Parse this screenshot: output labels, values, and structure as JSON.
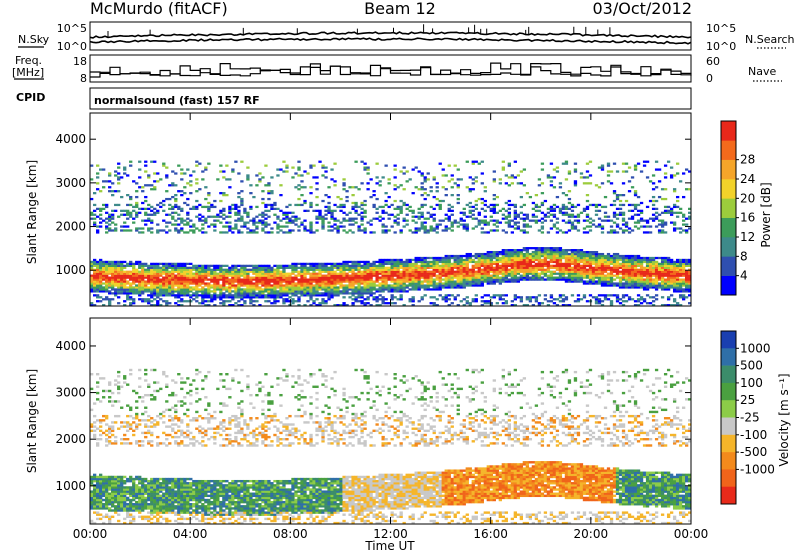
{
  "header": {
    "station": "McMurdo (fitACF)",
    "beam": "Beam 12",
    "date": "03/Oct/2012"
  },
  "strip_panels": {
    "nsky": {
      "left_label": "N.Sky",
      "right_label": "N.Search",
      "left_ticks": [
        "10^5",
        "10^0"
      ],
      "right_ticks": [
        "10^5",
        "10^0"
      ]
    },
    "freq": {
      "left_label_line1": "Freq.",
      "left_label_line2": "[MHz]",
      "right_label": "Nave",
      "left_ticks": [
        "18",
        "8"
      ],
      "right_ticks": [
        "60",
        "0"
      ]
    },
    "cpid": {
      "label": "CPID",
      "text": "normalsound (fast) 157 RF"
    }
  },
  "chart_data": [
    {
      "type": "heatmap",
      "name": "power",
      "xlabel": "",
      "ylabel": "Slant Range [km]",
      "x_range_hours": [
        0,
        24
      ],
      "ylim": [
        180,
        4600
      ],
      "y_ticks": [
        1000,
        2000,
        3000,
        4000
      ],
      "colorbar": {
        "label": "Power [dB]",
        "ticks": [
          4,
          8,
          12,
          16,
          20,
          24,
          28
        ],
        "colors": [
          "#0000ff",
          "#2f4fb0",
          "#3d8a8a",
          "#3c9c5a",
          "#9ccc3c",
          "#f2d22a",
          "#f5a52a",
          "#f36a1c",
          "#e8281a"
        ]
      }
    },
    {
      "type": "heatmap",
      "name": "velocity",
      "xlabel": "Time UT",
      "ylabel": "Slant Range [km]",
      "x_range_hours": [
        0,
        24
      ],
      "ylim": [
        180,
        4600
      ],
      "y_ticks": [
        1000,
        2000,
        3000,
        4000
      ],
      "x_ticks": [
        "00:00",
        "04:00",
        "08:00",
        "12:00",
        "16:00",
        "20:00",
        "00:00"
      ],
      "colorbar": {
        "label": "Velocity [m s⁻¹]",
        "ticks": [
          "1000",
          "500",
          "100",
          "25",
          "-25",
          "-100",
          "-500",
          "-1000"
        ],
        "colors": [
          "#1a3fb0",
          "#2f6fa8",
          "#3b8c6a",
          "#4aa040",
          "#8ccc48",
          "#c8c8c8",
          "#f5b52a",
          "#f38a1c",
          "#f0641a",
          "#e82a1a"
        ]
      }
    }
  ]
}
